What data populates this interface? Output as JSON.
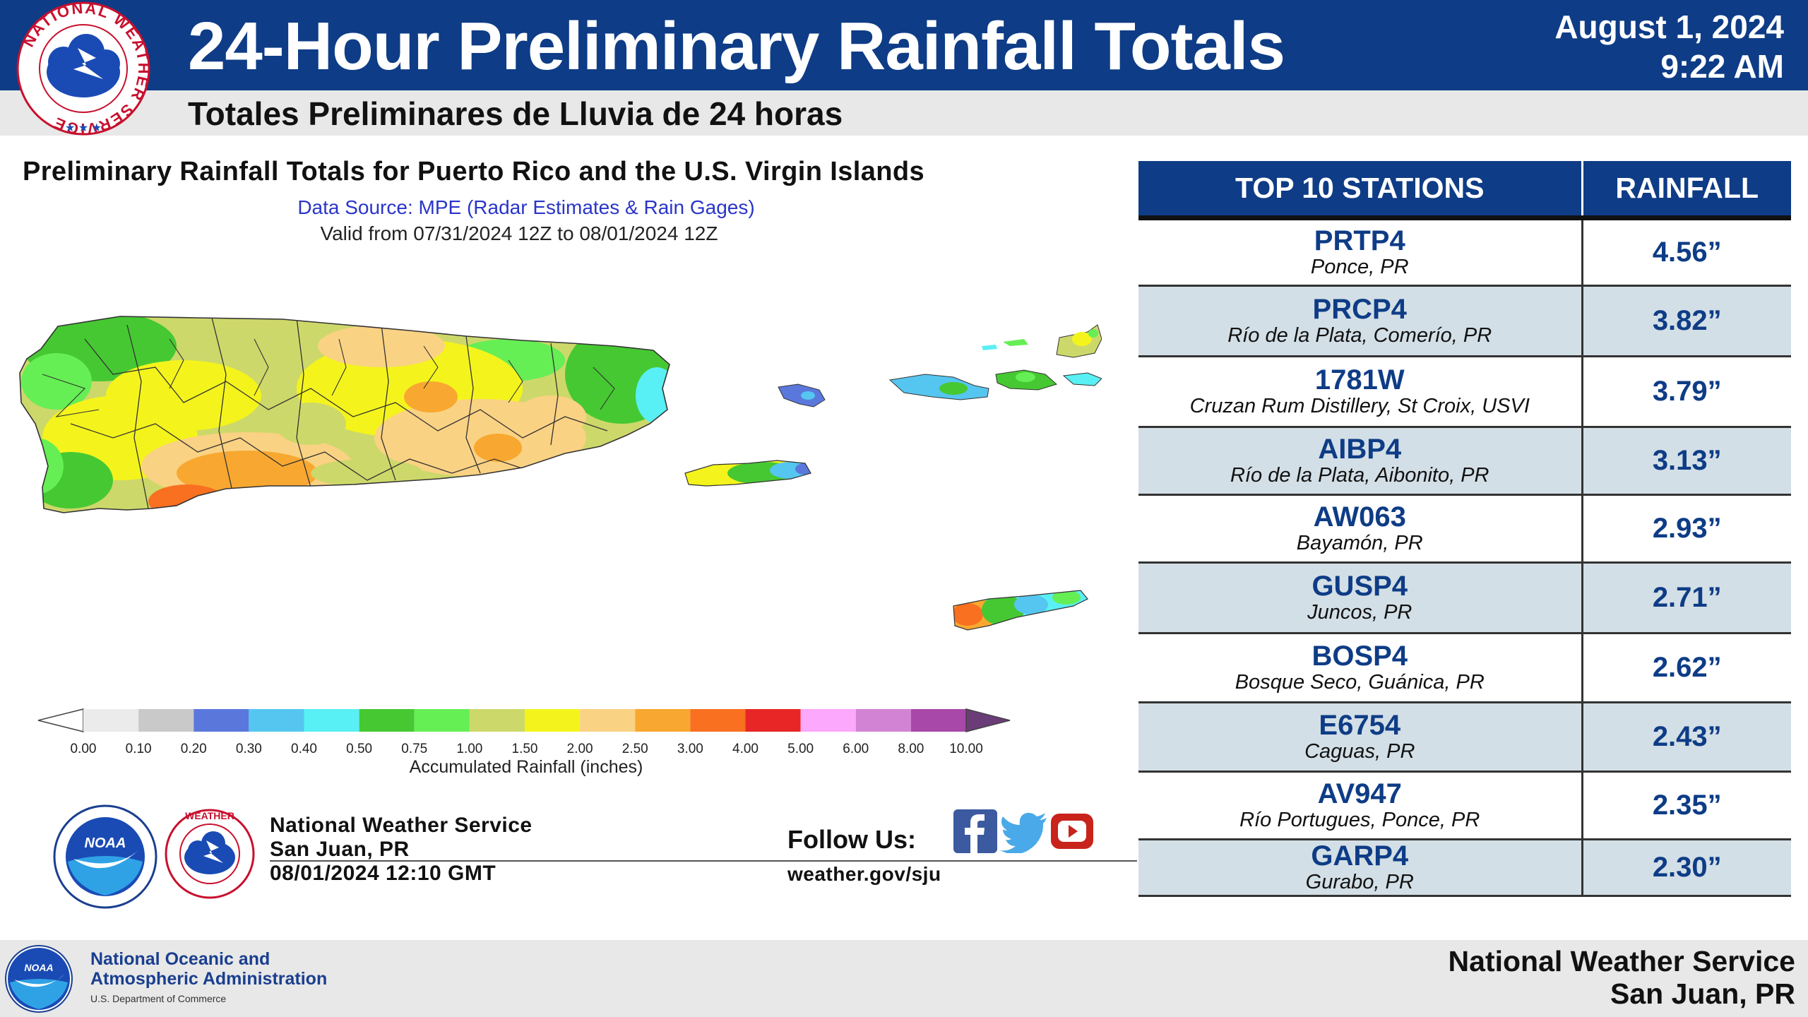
{
  "header": {
    "title": "24-Hour Preliminary Rainfall Totals",
    "subtitle": "Totales Preliminares de Lluvia de 24 horas",
    "date": "August 1, 2024",
    "time": "9:22 AM",
    "brand_color": "#0e3c86"
  },
  "nws_logo_text": "NATIONAL WEATHER SERVICE",
  "map": {
    "title": "Preliminary Rainfall Totals for Puerto Rico and the U.S. Virgin Islands",
    "source": "Data Source: MPE (Radar Estimates & Rain Gages)",
    "valid": "Valid from 07/31/2024 12Z to 08/01/2024 12Z",
    "legend_label": "Accumulated Rainfall (inches)",
    "legend_ticks": [
      "0.00",
      "0.10",
      "0.20",
      "0.30",
      "0.40",
      "0.50",
      "0.75",
      "1.00",
      "1.50",
      "2.00",
      "2.50",
      "3.00",
      "4.00",
      "5.00",
      "6.00",
      "8.00",
      "10.00"
    ],
    "legend_colors": [
      "#ebebeb",
      "#c9c9c9",
      "#5a78dc",
      "#55c6f0",
      "#58f0f4",
      "#46c832",
      "#66ee55",
      "#cdd86a",
      "#f4f41c",
      "#fad283",
      "#f8a830",
      "#f87020",
      "#e82626",
      "#fca8fc",
      "#d283d4",
      "#a848a8"
    ],
    "legend_arrow_color": "#6a3c78"
  },
  "footer_info": {
    "org": "National Weather Service",
    "office": "San Juan, PR",
    "timestamp": "08/01/2024 12:10 GMT",
    "follow_label": "Follow Us:",
    "url": "weather.gov/sju",
    "noaa_short": "NOAA",
    "social_icons": [
      "facebook-icon",
      "twitter-icon",
      "youtube-icon"
    ]
  },
  "table": {
    "headers": [
      "TOP 10 STATIONS",
      "RAINFALL"
    ],
    "rows": [
      {
        "code": "PRTP4",
        "location": "Ponce, PR",
        "rainfall": "4.56”"
      },
      {
        "code": "PRCP4",
        "location": "Río de la Plata, Comerío, PR",
        "rainfall": "3.82”"
      },
      {
        "code": "1781W",
        "location": "Cruzan Rum Distillery, St Croix, USVI",
        "rainfall": "3.79”"
      },
      {
        "code": "AIBP4",
        "location": "Río de la Plata, Aibonito, PR",
        "rainfall": "3.13”"
      },
      {
        "code": "AW063",
        "location": "Bayamón, PR",
        "rainfall": "2.93”"
      },
      {
        "code": "GUSP4",
        "location": "Juncos, PR",
        "rainfall": "2.71”"
      },
      {
        "code": "BOSP4",
        "location": "Bosque Seco, Guánica, PR",
        "rainfall": "2.62”"
      },
      {
        "code": "E6754",
        "location": "Caguas, PR",
        "rainfall": "2.43”"
      },
      {
        "code": "AV947",
        "location": "Río Portugues, Ponce, PR",
        "rainfall": "2.35”"
      },
      {
        "code": "GARP4",
        "location": "Gurabo, PR",
        "rainfall": "2.30”"
      }
    ]
  },
  "bottom": {
    "noaa_line1": "National Oceanic and",
    "noaa_line2": "Atmospheric Administration",
    "noaa_dept": "U.S. Department of Commerce",
    "nws_line1": "National Weather Service",
    "nws_line2": "San Juan, PR"
  }
}
